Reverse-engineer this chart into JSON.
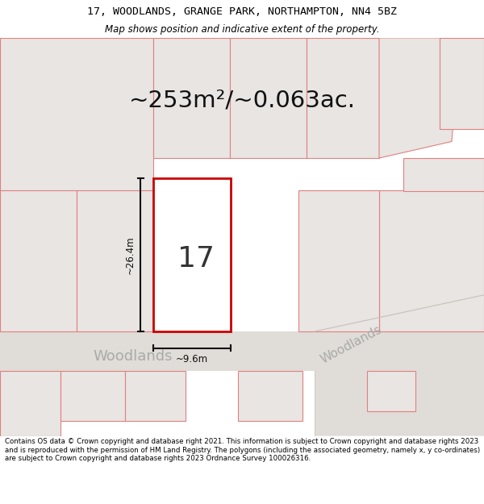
{
  "title_line1": "17, WOODLANDS, GRANGE PARK, NORTHAMPTON, NN4 5BZ",
  "title_line2": "Map shows position and indicative extent of the property.",
  "area_text": "~253m²/~0.063ac.",
  "number_label": "17",
  "dim_height": "~26.4m",
  "dim_width": "~9.6m",
  "street_label1": "Woodlands",
  "street_label2": "Woodlands",
  "footer_text": "Contains OS data © Crown copyright and database right 2021. This information is subject to Crown copyright and database rights 2023 and is reproduced with the permission of HM Land Registry. The polygons (including the associated geometry, namely x, y co-ordinates) are subject to Crown copyright and database rights 2023 Ordnance Survey 100026316.",
  "bg_color": "#eeece9",
  "road_color": "#e0dcd7",
  "property_fill": "#ffffff",
  "property_border": "#cc0000",
  "neighbor_border": "#e08080",
  "neighbor_fill": "#e8e5e2",
  "dim_line_color": "#111111",
  "header_bg": "#ffffff",
  "footer_bg": "#ffffff"
}
